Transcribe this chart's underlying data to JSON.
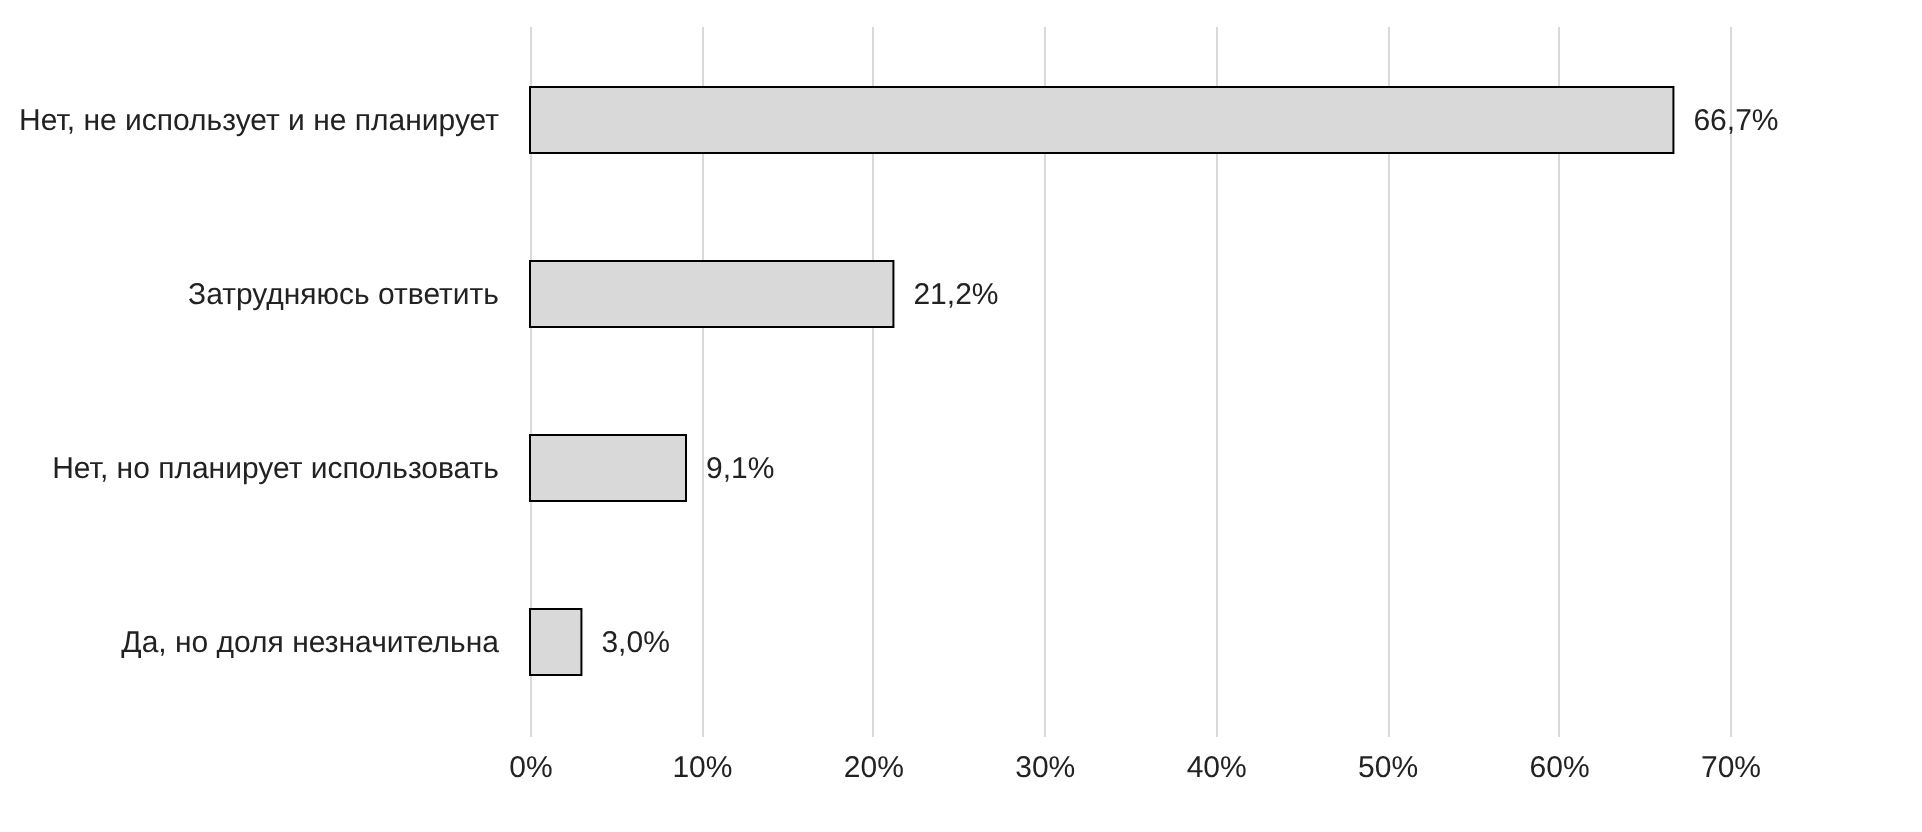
{
  "chart_data": {
    "type": "bar",
    "orientation": "horizontal",
    "categories": [
      "Нет, не использует и не планирует",
      "Затрудняюсь ответить",
      "Нет, но планирует использовать",
      "Да, но доля незначительна"
    ],
    "values": [
      66.7,
      21.2,
      9.1,
      3.0
    ],
    "value_labels": [
      "66,7%",
      "21,2%",
      "9,1%",
      "3,0%"
    ],
    "color": "#d9d9d9",
    "xlim": [
      0,
      70
    ],
    "xticks": [
      {
        "value": 0,
        "label": "0%"
      },
      {
        "value": 10,
        "label": "10%"
      },
      {
        "value": 20,
        "label": "20%"
      },
      {
        "value": 30,
        "label": "30%"
      },
      {
        "value": 40,
        "label": "40%"
      },
      {
        "value": 50,
        "label": "50%"
      },
      {
        "value": 60,
        "label": "60%"
      },
      {
        "value": 70,
        "label": "70%"
      }
    ],
    "grid": "x"
  }
}
